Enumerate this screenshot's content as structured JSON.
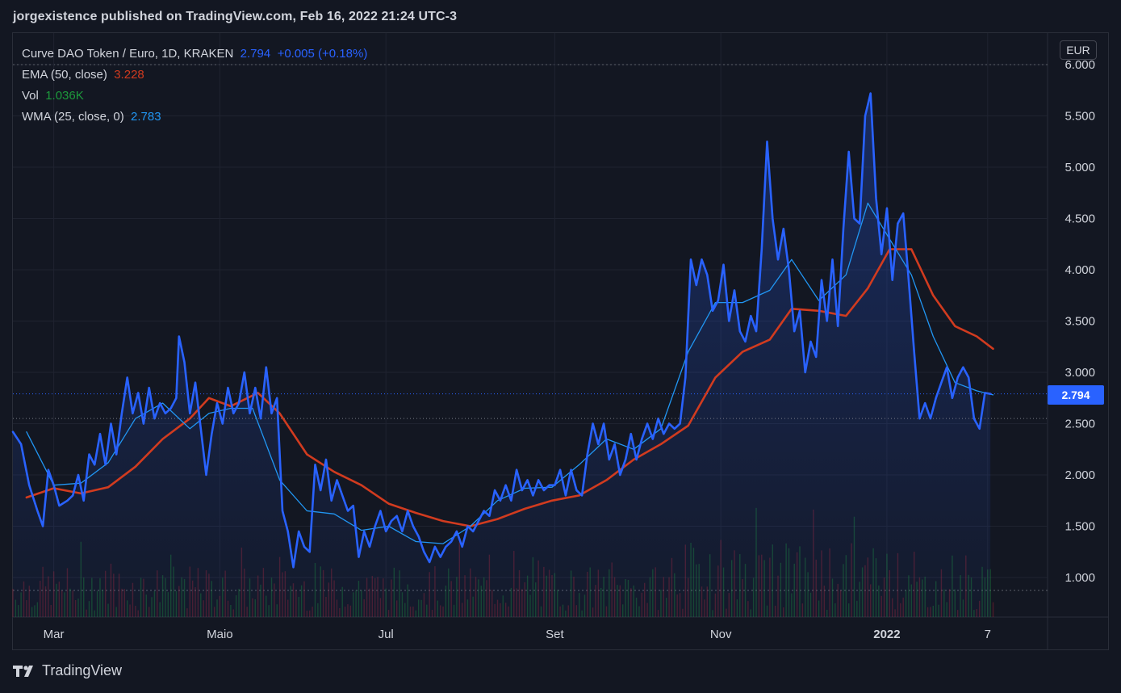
{
  "header": {
    "published_text": "jorgexistence published on TradingView.com, Feb 16, 2022 21:24 UTC-3"
  },
  "legend": {
    "symbol": "Curve DAO Token / Euro, 1D, KRAKEN",
    "last": "2.794",
    "change": "+0.005 (+0.18%)",
    "ema_label": "EMA (50, close)",
    "ema_value": "3.228",
    "vol_label": "Vol",
    "vol_value": "1.036K",
    "wma_label": "WMA (25, close, 0)",
    "wma_value": "2.783"
  },
  "currency": "EUR",
  "price_tag": "2.794",
  "brand": {
    "name": "TradingView"
  },
  "colors": {
    "price": "#2962ff",
    "ema": "#d13b1f",
    "wma": "#2196f3",
    "volume_up": "#1d9a3c",
    "volume_down": "#b2263a",
    "background": "#131722"
  },
  "chart_data": {
    "type": "line",
    "y_axis_ticks": [
      "1.000",
      "1.500",
      "2.000",
      "2.500",
      "3.000",
      "3.500",
      "4.000",
      "4.500",
      "5.000",
      "5.500",
      "6.000"
    ],
    "x_axis_ticks": [
      {
        "label": "Mar",
        "day": 15
      },
      {
        "label": "Maio",
        "day": 76
      },
      {
        "label": "Jul",
        "day": 137
      },
      {
        "label": "Set",
        "day": 199
      },
      {
        "label": "Nov",
        "day": 260
      },
      {
        "label": "2022",
        "day": 321
      },
      {
        "label": "7",
        "day": 358
      }
    ],
    "ylim": [
      0.55,
      6.1
    ],
    "xlim": [
      0,
      380
    ],
    "series": [
      {
        "name": "Curve DAO Token / Euro, 1D, KRAKEN",
        "points": [
          [
            0,
            2.42
          ],
          [
            3,
            2.3
          ],
          [
            6,
            1.9
          ],
          [
            9,
            1.65
          ],
          [
            11,
            1.5
          ],
          [
            13,
            2.05
          ],
          [
            15,
            1.9
          ],
          [
            17,
            1.7
          ],
          [
            20,
            1.75
          ],
          [
            22,
            1.8
          ],
          [
            24,
            2.0
          ],
          [
            26,
            1.75
          ],
          [
            28,
            2.2
          ],
          [
            30,
            2.1
          ],
          [
            32,
            2.4
          ],
          [
            34,
            2.1
          ],
          [
            36,
            2.5
          ],
          [
            38,
            2.2
          ],
          [
            40,
            2.6
          ],
          [
            42,
            2.95
          ],
          [
            44,
            2.6
          ],
          [
            46,
            2.8
          ],
          [
            48,
            2.5
          ],
          [
            50,
            2.85
          ],
          [
            52,
            2.55
          ],
          [
            54,
            2.7
          ],
          [
            56,
            2.6
          ],
          [
            58,
            2.65
          ],
          [
            60,
            2.75
          ],
          [
            61,
            3.35
          ],
          [
            63,
            3.1
          ],
          [
            65,
            2.6
          ],
          [
            67,
            2.9
          ],
          [
            69,
            2.45
          ],
          [
            71,
            2.0
          ],
          [
            73,
            2.4
          ],
          [
            75,
            2.7
          ],
          [
            77,
            2.5
          ],
          [
            79,
            2.85
          ],
          [
            81,
            2.6
          ],
          [
            83,
            2.7
          ],
          [
            85,
            3.0
          ],
          [
            87,
            2.6
          ],
          [
            89,
            2.85
          ],
          [
            91,
            2.55
          ],
          [
            93,
            3.05
          ],
          [
            95,
            2.6
          ],
          [
            97,
            2.75
          ],
          [
            99,
            1.65
          ],
          [
            101,
            1.45
          ],
          [
            103,
            1.1
          ],
          [
            105,
            1.45
          ],
          [
            107,
            1.3
          ],
          [
            109,
            1.25
          ],
          [
            111,
            2.1
          ],
          [
            113,
            1.85
          ],
          [
            115,
            2.15
          ],
          [
            117,
            1.75
          ],
          [
            119,
            1.95
          ],
          [
            121,
            1.8
          ],
          [
            123,
            1.65
          ],
          [
            125,
            1.7
          ],
          [
            127,
            1.2
          ],
          [
            129,
            1.45
          ],
          [
            131,
            1.3
          ],
          [
            133,
            1.5
          ],
          [
            135,
            1.65
          ],
          [
            137,
            1.45
          ],
          [
            139,
            1.55
          ],
          [
            141,
            1.6
          ],
          [
            143,
            1.45
          ],
          [
            145,
            1.65
          ],
          [
            147,
            1.5
          ],
          [
            149,
            1.4
          ],
          [
            151,
            1.25
          ],
          [
            153,
            1.15
          ],
          [
            155,
            1.3
          ],
          [
            157,
            1.2
          ],
          [
            159,
            1.3
          ],
          [
            161,
            1.35
          ],
          [
            163,
            1.45
          ],
          [
            165,
            1.3
          ],
          [
            167,
            1.5
          ],
          [
            169,
            1.45
          ],
          [
            171,
            1.55
          ],
          [
            173,
            1.65
          ],
          [
            175,
            1.6
          ],
          [
            177,
            1.85
          ],
          [
            179,
            1.75
          ],
          [
            181,
            1.9
          ],
          [
            183,
            1.75
          ],
          [
            185,
            2.05
          ],
          [
            187,
            1.85
          ],
          [
            189,
            1.95
          ],
          [
            191,
            1.8
          ],
          [
            193,
            1.95
          ],
          [
            195,
            1.85
          ],
          [
            197,
            1.9
          ],
          [
            199,
            1.9
          ],
          [
            201,
            2.05
          ],
          [
            203,
            1.8
          ],
          [
            205,
            2.05
          ],
          [
            207,
            1.85
          ],
          [
            209,
            1.8
          ],
          [
            211,
            2.2
          ],
          [
            213,
            2.5
          ],
          [
            215,
            2.3
          ],
          [
            217,
            2.5
          ],
          [
            219,
            2.15
          ],
          [
            221,
            2.3
          ],
          [
            223,
            2.0
          ],
          [
            225,
            2.15
          ],
          [
            227,
            2.4
          ],
          [
            229,
            2.15
          ],
          [
            231,
            2.35
          ],
          [
            233,
            2.5
          ],
          [
            235,
            2.35
          ],
          [
            237,
            2.55
          ],
          [
            239,
            2.4
          ],
          [
            241,
            2.5
          ],
          [
            243,
            2.45
          ],
          [
            245,
            2.5
          ],
          [
            247,
            2.95
          ],
          [
            249,
            4.1
          ],
          [
            251,
            3.85
          ],
          [
            253,
            4.1
          ],
          [
            255,
            3.95
          ],
          [
            257,
            3.6
          ],
          [
            259,
            3.7
          ],
          [
            261,
            4.05
          ],
          [
            263,
            3.5
          ],
          [
            265,
            3.8
          ],
          [
            267,
            3.4
          ],
          [
            269,
            3.3
          ],
          [
            271,
            3.55
          ],
          [
            273,
            3.4
          ],
          [
            275,
            4.2
          ],
          [
            277,
            5.25
          ],
          [
            279,
            4.5
          ],
          [
            281,
            4.1
          ],
          [
            283,
            4.4
          ],
          [
            285,
            4.0
          ],
          [
            287,
            3.4
          ],
          [
            289,
            3.6
          ],
          [
            291,
            3.0
          ],
          [
            293,
            3.3
          ],
          [
            295,
            3.15
          ],
          [
            297,
            3.9
          ],
          [
            299,
            3.5
          ],
          [
            301,
            4.1
          ],
          [
            303,
            3.45
          ],
          [
            305,
            4.4
          ],
          [
            307,
            5.15
          ],
          [
            309,
            4.5
          ],
          [
            311,
            4.45
          ],
          [
            313,
            5.5
          ],
          [
            315,
            5.72
          ],
          [
            317,
            4.7
          ],
          [
            319,
            4.15
          ],
          [
            321,
            4.6
          ],
          [
            323,
            3.9
          ],
          [
            325,
            4.45
          ],
          [
            327,
            4.55
          ],
          [
            329,
            3.9
          ],
          [
            331,
            3.2
          ],
          [
            333,
            2.55
          ],
          [
            335,
            2.7
          ],
          [
            337,
            2.55
          ],
          [
            339,
            2.75
          ],
          [
            341,
            2.9
          ],
          [
            343,
            3.05
          ],
          [
            345,
            2.75
          ],
          [
            347,
            2.95
          ],
          [
            349,
            3.05
          ],
          [
            351,
            2.95
          ],
          [
            353,
            2.55
          ],
          [
            355,
            2.45
          ],
          [
            357,
            2.8
          ],
          [
            359,
            2.79
          ]
        ]
      },
      {
        "name": "EMA (50, close)",
        "points": [
          [
            5,
            1.78
          ],
          [
            15,
            1.87
          ],
          [
            25,
            1.82
          ],
          [
            35,
            1.88
          ],
          [
            45,
            2.08
          ],
          [
            55,
            2.35
          ],
          [
            65,
            2.55
          ],
          [
            72,
            2.75
          ],
          [
            80,
            2.67
          ],
          [
            90,
            2.8
          ],
          [
            98,
            2.6
          ],
          [
            108,
            2.2
          ],
          [
            118,
            2.03
          ],
          [
            128,
            1.9
          ],
          [
            138,
            1.72
          ],
          [
            148,
            1.63
          ],
          [
            158,
            1.55
          ],
          [
            168,
            1.5
          ],
          [
            178,
            1.57
          ],
          [
            188,
            1.67
          ],
          [
            198,
            1.75
          ],
          [
            208,
            1.8
          ],
          [
            218,
            1.95
          ],
          [
            228,
            2.15
          ],
          [
            238,
            2.3
          ],
          [
            248,
            2.48
          ],
          [
            258,
            2.95
          ],
          [
            268,
            3.2
          ],
          [
            278,
            3.32
          ],
          [
            286,
            3.62
          ],
          [
            296,
            3.6
          ],
          [
            306,
            3.55
          ],
          [
            314,
            3.82
          ],
          [
            322,
            4.2
          ],
          [
            330,
            4.2
          ],
          [
            338,
            3.75
          ],
          [
            346,
            3.45
          ],
          [
            354,
            3.35
          ],
          [
            360,
            3.23
          ]
        ]
      },
      {
        "name": "WMA (25, close, 0)",
        "points": [
          [
            5,
            2.42
          ],
          [
            15,
            1.9
          ],
          [
            25,
            1.92
          ],
          [
            35,
            2.12
          ],
          [
            45,
            2.55
          ],
          [
            55,
            2.7
          ],
          [
            65,
            2.45
          ],
          [
            72,
            2.6
          ],
          [
            80,
            2.65
          ],
          [
            88,
            2.65
          ],
          [
            98,
            1.95
          ],
          [
            108,
            1.65
          ],
          [
            118,
            1.62
          ],
          [
            128,
            1.46
          ],
          [
            138,
            1.5
          ],
          [
            148,
            1.35
          ],
          [
            158,
            1.33
          ],
          [
            168,
            1.5
          ],
          [
            178,
            1.75
          ],
          [
            188,
            1.87
          ],
          [
            198,
            1.88
          ],
          [
            208,
            2.1
          ],
          [
            218,
            2.35
          ],
          [
            228,
            2.25
          ],
          [
            238,
            2.45
          ],
          [
            248,
            3.2
          ],
          [
            258,
            3.68
          ],
          [
            268,
            3.68
          ],
          [
            278,
            3.8
          ],
          [
            286,
            4.1
          ],
          [
            296,
            3.7
          ],
          [
            306,
            3.95
          ],
          [
            314,
            4.65
          ],
          [
            322,
            4.3
          ],
          [
            330,
            3.95
          ],
          [
            338,
            3.35
          ],
          [
            346,
            2.9
          ],
          [
            354,
            2.82
          ],
          [
            360,
            2.78
          ]
        ]
      }
    ]
  }
}
